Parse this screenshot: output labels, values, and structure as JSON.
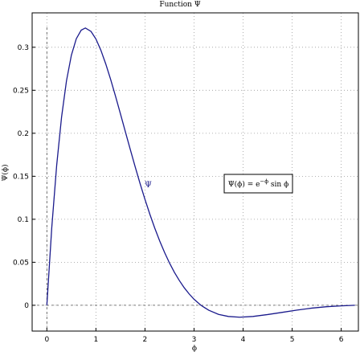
{
  "chart_data": {
    "type": "line",
    "title": "Function Ψ",
    "xlabel": "ϕ",
    "ylabel": "Ψ(ϕ)",
    "xlim": [
      -0.3,
      6.35
    ],
    "ylim": [
      -0.03,
      0.34
    ],
    "x_ticks": [
      0,
      1,
      2,
      3,
      4,
      5,
      6
    ],
    "y_ticks": [
      0,
      0.05,
      0.1,
      0.15,
      0.2,
      0.25,
      0.3
    ],
    "y_tick_labels": [
      "0",
      "0.05",
      "0.1",
      "0.15",
      "0.2",
      "0.25",
      "0.3"
    ],
    "grid": true,
    "zero_lines": true,
    "series": [
      {
        "name": "Ψ",
        "color": "#1a1a8c",
        "x": [
          0,
          0.1,
          0.2,
          0.3,
          0.4,
          0.5,
          0.6,
          0.7,
          0.785,
          0.9,
          1.0,
          1.1,
          1.2,
          1.3,
          1.4,
          1.5,
          1.6,
          1.7,
          1.8,
          1.9,
          2.0,
          2.1,
          2.2,
          2.3,
          2.4,
          2.5,
          2.6,
          2.7,
          2.8,
          2.9,
          3.0,
          3.14,
          3.3,
          3.5,
          3.7,
          3.93,
          4.2,
          4.5,
          4.8,
          5.1,
          5.4,
          5.7,
          6.0,
          6.28
        ],
        "y": [
          0,
          0.0903,
          0.1627,
          0.2189,
          0.261,
          0.2908,
          0.3099,
          0.3199,
          0.3224,
          0.3184,
          0.3096,
          0.2967,
          0.2807,
          0.2626,
          0.243,
          0.2226,
          0.2018,
          0.1812,
          0.161,
          0.1415,
          0.1231,
          0.1057,
          0.0896,
          0.0748,
          0.0613,
          0.0491,
          0.0383,
          0.0288,
          0.0204,
          0.0132,
          0.007,
          0.0,
          -0.0058,
          -0.0106,
          -0.013,
          -0.0139,
          -0.013,
          -0.0108,
          -0.0082,
          -0.0056,
          -0.0033,
          -0.0017,
          -0.0007,
          0.0
        ]
      }
    ],
    "curve_label": "Ψ",
    "legend_text": "Ψ(ϕ) = e^{−ϕ} sin ϕ"
  }
}
